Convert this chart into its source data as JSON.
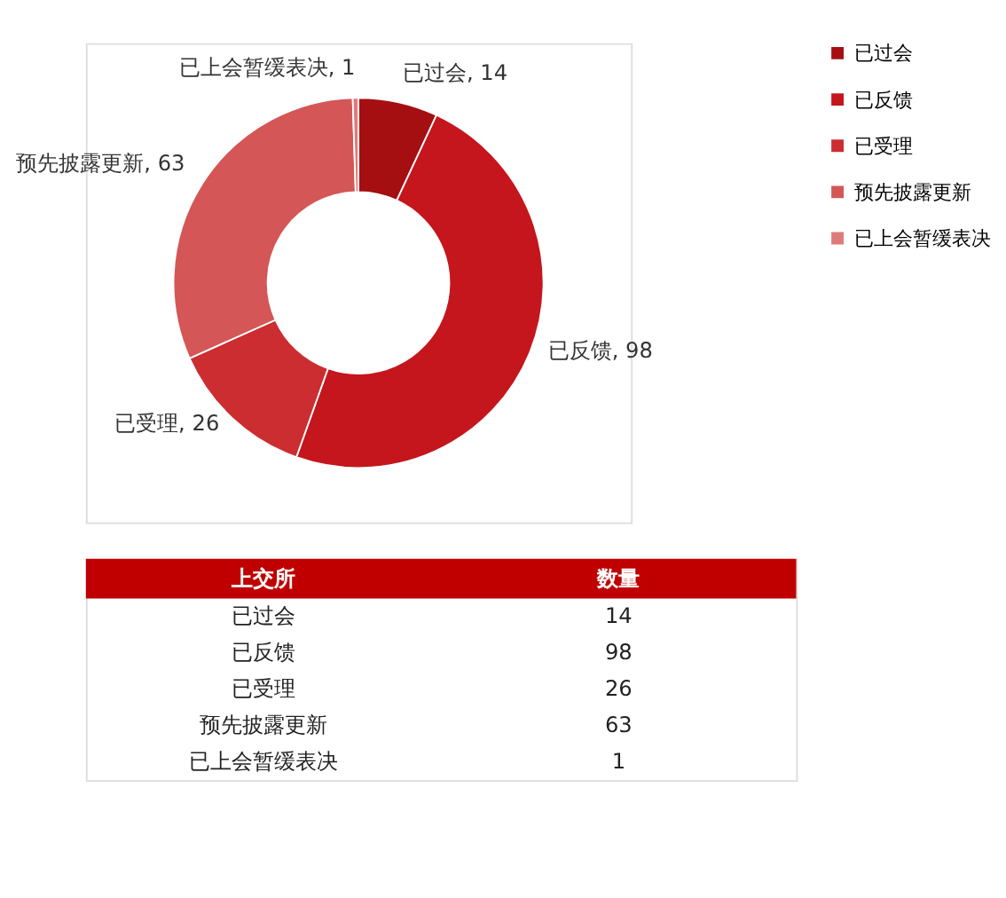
{
  "chart_data": [
    {
      "type": "donut",
      "categories": [
        "已过会",
        "已反馈",
        "已受理",
        "预先披露更新",
        "已上会暂缓表决"
      ],
      "values": [
        14,
        98,
        26,
        63,
        1
      ],
      "colors": [
        "#a50f12",
        "#c4161c",
        "#cc2d30",
        "#d45656",
        "#e07a7a"
      ],
      "value_labels": [
        "已过会, 14",
        "已反馈, 98",
        "已受理, 26",
        "预先披露更新, 63",
        "已上会暂缓表决, 1"
      ],
      "legend": "right"
    },
    {
      "type": "other",
      "categories": [
        "已过会",
        "已反馈",
        "已受理",
        "预先披露更新",
        "已上会暂缓表决"
      ],
      "values": [
        14,
        98,
        26,
        63,
        1
      ],
      "data_labels": true,
      "annotations": [
        "上交所",
        "数量"
      ]
    }
  ]
}
